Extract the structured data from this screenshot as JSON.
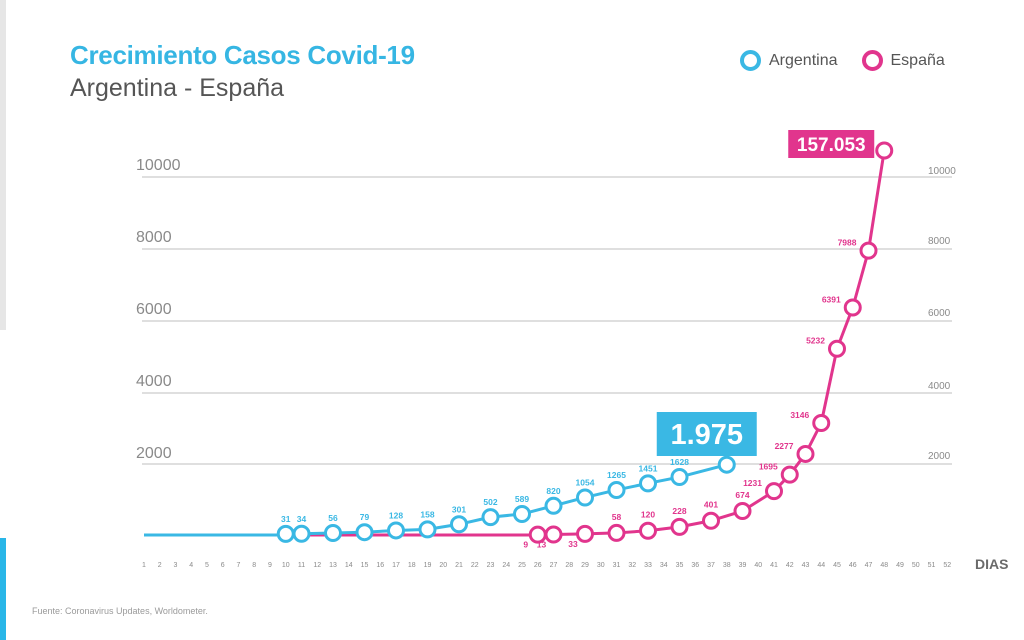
{
  "header": {
    "title": "Crecimiento Casos Covid-19",
    "subtitle": "Argentina - España"
  },
  "legend": {
    "argentina": "Argentina",
    "espana": "España"
  },
  "source": "Fuente: Coronavirus Updates, Worldometer.",
  "colors": {
    "argentina": "#3ab8e4",
    "espana": "#e1358d",
    "grid": "#cccccc"
  },
  "chart_data": {
    "type": "line",
    "xlabel": "DIAS",
    "x_ticks": [
      1,
      2,
      3,
      4,
      5,
      6,
      7,
      8,
      9,
      10,
      11,
      12,
      13,
      14,
      15,
      16,
      17,
      18,
      19,
      20,
      21,
      22,
      23,
      24,
      25,
      26,
      27,
      28,
      29,
      30,
      31,
      32,
      33,
      34,
      35,
      36,
      37,
      38,
      39,
      40,
      41,
      42,
      43,
      44,
      45,
      46,
      47,
      48,
      49,
      50,
      51,
      52
    ],
    "y_ticks_left": [
      "10000",
      "8000",
      "6000",
      "4000",
      "2000"
    ],
    "y_ticks_right": [
      "10000",
      "8000",
      "6000",
      "4000",
      "2000"
    ],
    "series": [
      {
        "name": "Argentina",
        "color": "#3ab8e4",
        "points": [
          {
            "day": 10,
            "value": 31,
            "label": "31"
          },
          {
            "day": 11,
            "value": 34,
            "label": "34"
          },
          {
            "day": 13,
            "value": 56,
            "label": "56"
          },
          {
            "day": 15,
            "value": 79,
            "label": "79"
          },
          {
            "day": 17,
            "value": 128,
            "label": "128"
          },
          {
            "day": 19,
            "value": 158,
            "label": "158"
          },
          {
            "day": 21,
            "value": 301,
            "label": "301"
          },
          {
            "day": 23,
            "value": 502,
            "label": "502"
          },
          {
            "day": 25,
            "value": 589,
            "label": "589"
          },
          {
            "day": 27,
            "value": 820,
            "label": "820"
          },
          {
            "day": 29,
            "value": 1054,
            "label": "1054"
          },
          {
            "day": 31,
            "value": 1265,
            "label": "1265"
          },
          {
            "day": 33,
            "value": 1451,
            "label": "1451"
          },
          {
            "day": 35,
            "value": 1628,
            "label": "1628"
          },
          {
            "day": 38,
            "value": 1975,
            "label": ""
          }
        ],
        "callout": "1.975"
      },
      {
        "name": "España",
        "color": "#e1358d",
        "points": [
          {
            "day": 26,
            "value": 9,
            "label": "9"
          },
          {
            "day": 27,
            "value": 13,
            "label": "13"
          },
          {
            "day": 29,
            "value": 33,
            "label": "33"
          },
          {
            "day": 31,
            "value": 58,
            "label": "58"
          },
          {
            "day": 33,
            "value": 120,
            "label": "120"
          },
          {
            "day": 35,
            "value": 228,
            "label": "228"
          },
          {
            "day": 37,
            "value": 401,
            "label": "401"
          },
          {
            "day": 39,
            "value": 674,
            "label": "674"
          },
          {
            "day": 41,
            "value": 1231,
            "label": "1231"
          },
          {
            "day": 42,
            "value": 1695,
            "label": "1695"
          },
          {
            "day": 43,
            "value": 2277,
            "label": "2277"
          },
          {
            "day": 44,
            "value": 3146,
            "label": "3146"
          },
          {
            "day": 45,
            "value": 5232,
            "label": "5232"
          },
          {
            "day": 46,
            "value": 6391,
            "label": "6391"
          },
          {
            "day": 47,
            "value": 7988,
            "label": "7988"
          },
          {
            "day": 48,
            "value": 10800,
            "label": ""
          }
        ],
        "callout": "157.053"
      }
    ]
  }
}
